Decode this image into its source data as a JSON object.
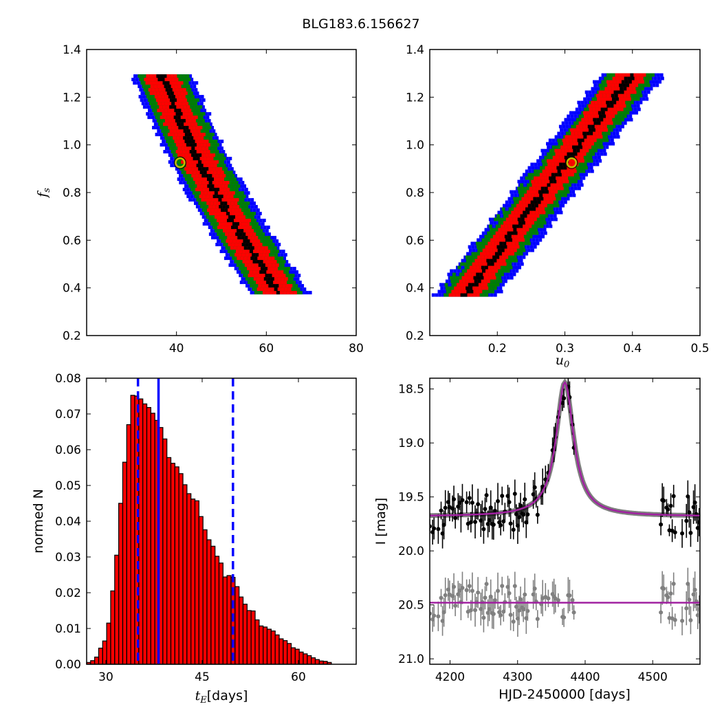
{
  "figure": {
    "title": "BLG183.6.156627"
  },
  "chart_data": [
    {
      "id": "tE-vs-fs",
      "type": "scatter",
      "xlim": [
        20,
        80
      ],
      "ylim": [
        0.2,
        1.4
      ],
      "xticks": [
        "40",
        "60",
        "80"
      ],
      "xtick_values": [
        40,
        60,
        80
      ],
      "yticks": [
        "0.2",
        "0.4",
        "0.6",
        "0.8",
        "1.0",
        "1.2",
        "1.4"
      ],
      "ytick_values": [
        0.2,
        0.4,
        0.6,
        0.8,
        1.0,
        1.2,
        1.4
      ],
      "xlabel": "",
      "ylabel": "f_s",
      "band": {
        "comment_free": true,
        "fs_range": [
          0.38,
          1.3
        ],
        "center_x_at_fs_1_3": 36.5,
        "center_x_at_fs_0_4": 62.0,
        "curve": 0.6
      },
      "layers": [
        {
          "name": "3-sigma",
          "color": "#0000ff",
          "halfwidth_x": 6.5
        },
        {
          "name": "2-sigma",
          "color": "#007f00",
          "halfwidth_x": 5.0
        },
        {
          "name": "1-sigma",
          "color": "#ff0000",
          "halfwidth_x": 3.4
        },
        {
          "name": "best-density",
          "color": "#000000",
          "halfwidth_x": 1.4
        }
      ],
      "best_fit": {
        "x": 40.8,
        "y": 0.925,
        "color": "#bfbf00"
      }
    },
    {
      "id": "u0-vs-fs",
      "type": "scatter",
      "xlim": [
        0.1,
        0.5
      ],
      "ylim": [
        0.2,
        1.4
      ],
      "xticks": [
        "0.2",
        "0.3",
        "0.4",
        "0.5"
      ],
      "xtick_values": [
        0.2,
        0.3,
        0.4,
        0.5
      ],
      "yticks": [
        "0.2",
        "0.4",
        "0.6",
        "0.8",
        "1.0",
        "1.2",
        "1.4"
      ],
      "ytick_values": [
        0.2,
        0.4,
        0.6,
        0.8,
        1.0,
        1.2,
        1.4
      ],
      "xlabel": "u_0",
      "ylabel": "",
      "band": {
        "fs_range": [
          0.37,
          1.3
        ],
        "center_x_at_fs_0_4": 0.16,
        "center_x_at_fs_1_3": 0.4,
        "curve": 0.0
      },
      "layers": [
        {
          "name": "3-sigma",
          "color": "#0000ff",
          "halfwidth_x": 0.045
        },
        {
          "name": "2-sigma",
          "color": "#007f00",
          "halfwidth_x": 0.034
        },
        {
          "name": "1-sigma",
          "color": "#ff0000",
          "halfwidth_x": 0.023
        },
        {
          "name": "best-density",
          "color": "#000000",
          "halfwidth_x": 0.008
        }
      ],
      "best_fit": {
        "x": 0.31,
        "y": 0.925,
        "color": "#bfbf00"
      }
    },
    {
      "id": "tE-histogram",
      "type": "bar",
      "xlim": [
        27,
        69
      ],
      "ylim": [
        0.0,
        0.08
      ],
      "xticks": [
        "30",
        "45",
        "60"
      ],
      "xtick_values": [
        30,
        45,
        60
      ],
      "yticks": [
        "0.00",
        "0.01",
        "0.02",
        "0.03",
        "0.04",
        "0.05",
        "0.06",
        "0.07",
        "0.08"
      ],
      "ytick_values": [
        0,
        0.01,
        0.02,
        0.03,
        0.04,
        0.05,
        0.06,
        0.07,
        0.08
      ],
      "xlabel_math": "t_E",
      "xlabel": "[days]",
      "ylabel": "normed N",
      "bin_start": 27.0,
      "bin_width": 0.625,
      "values": [
        0.0005,
        0.001,
        0.002,
        0.0045,
        0.0065,
        0.0115,
        0.0205,
        0.0305,
        0.045,
        0.0565,
        0.067,
        0.0752,
        0.075,
        0.0742,
        0.0728,
        0.0718,
        0.0702,
        0.0682,
        0.0662,
        0.063,
        0.0578,
        0.0562,
        0.0552,
        0.0533,
        0.0502,
        0.0477,
        0.0462,
        0.0457,
        0.0413,
        0.0376,
        0.0348,
        0.033,
        0.0302,
        0.0283,
        0.0244,
        0.0248,
        0.0243,
        0.0217,
        0.0188,
        0.0168,
        0.015,
        0.0149,
        0.0124,
        0.0107,
        0.0104,
        0.0098,
        0.0093,
        0.0082,
        0.0071,
        0.0066,
        0.0058,
        0.0046,
        0.0042,
        0.0034,
        0.0029,
        0.0024,
        0.0018,
        0.0013,
        0.0009,
        0.0008,
        0.0005
      ],
      "bar_color": "#ff0000",
      "vlines": [
        {
          "x": 35.0,
          "style": "dashed",
          "color": "#0000ff"
        },
        {
          "x": 38.2,
          "style": "solid",
          "color": "#0000ff"
        },
        {
          "x": 49.8,
          "style": "dashed",
          "color": "#0000ff"
        }
      ]
    },
    {
      "id": "light-curve",
      "type": "line",
      "xlim": [
        4170,
        4570
      ],
      "ylim": [
        21.05,
        18.4
      ],
      "y_inverted": true,
      "xticks": [
        "4200",
        "4300",
        "4400",
        "4500"
      ],
      "xtick_values": [
        4200,
        4300,
        4400,
        4500
      ],
      "yticks": [
        "18.5",
        "19.0",
        "19.5",
        "20.0",
        "20.5",
        "21.0"
      ],
      "ytick_values": [
        18.5,
        19.0,
        19.5,
        20.0,
        20.5,
        21.0
      ],
      "xlabel": "HJD-2450000 [days]",
      "ylabel": "I [mag]",
      "model": {
        "t0": 4370,
        "baseline": 19.68,
        "peak": 18.44,
        "tau": 20,
        "color": "#a020a0"
      },
      "data_color": "#000000",
      "residual_offset": 20.48,
      "residual_color": "#808080",
      "observation_windows": [
        [
          4170,
          4330
        ],
        [
          4335,
          4390
        ],
        [
          4510,
          4570
        ]
      ]
    }
  ]
}
